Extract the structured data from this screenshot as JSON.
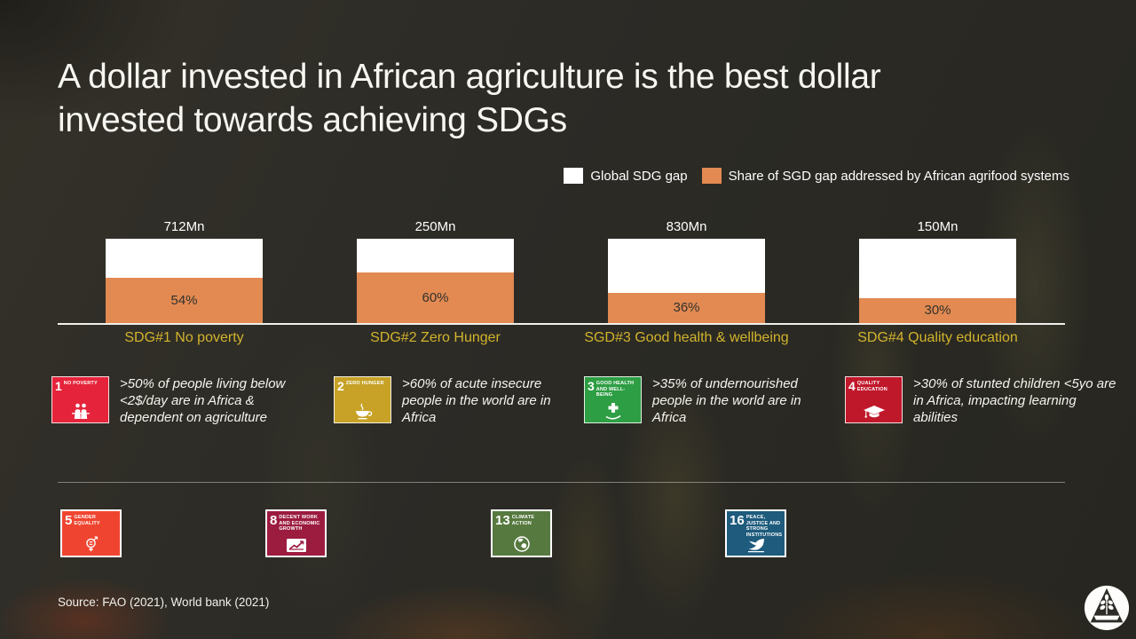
{
  "title_lines": [
    "A dollar invested in African agriculture is the best dollar",
    "invested towards achieving SDGs"
  ],
  "legend": {
    "items": [
      {
        "label": "Global SDG gap",
        "color": "#ffffff"
      },
      {
        "label": "Share of SGD gap addressed by African agrifood systems",
        "color": "#e28a52"
      }
    ]
  },
  "chart_data": {
    "type": "bar",
    "subtype": "stacked-100pct",
    "title": "Global SDG gap vs share of gap addressed by African agrifood systems",
    "categories": [
      "SDG#1 No poverty",
      "SDG#2 Zero Hunger",
      "SGD#3 Good health & wellbeing",
      "SDG#4 Quality education"
    ],
    "totals_label": [
      "712Mn",
      "250Mn",
      "830Mn",
      "150Mn"
    ],
    "totals_mn": [
      712,
      250,
      830,
      150
    ],
    "share_values_pct": [
      54,
      60,
      36,
      30
    ],
    "share_labels": [
      "54%",
      "60%",
      "36%",
      "30%"
    ],
    "series": [
      {
        "name": "Global SDG gap",
        "color": "#ffffff"
      },
      {
        "name": "Share of SGD gap addressed by African agrifood systems",
        "color": "#e28a52"
      }
    ],
    "xlabel": "",
    "ylabel": "",
    "gridlines": false,
    "legend_position": "top-right",
    "category_label_color": "#d2b42c",
    "value_label_color": "#ffffff"
  },
  "sdg_cards": [
    {
      "num": "1",
      "name": "NO POVERTY",
      "color": "#e5243b",
      "text": ">50% of people living below <2$/day are in Africa & dependent on agriculture"
    },
    {
      "num": "2",
      "name": "ZERO HUNGER",
      "color": "#c7a227",
      "text": ">60% of acute insecure people in the world are in Africa"
    },
    {
      "num": "3",
      "name": "GOOD HEALTH AND WELL-BEING",
      "color": "#2e9e44",
      "text": ">35% of undernourished people in the world are in Africa"
    },
    {
      "num": "4",
      "name": "QUALITY EDUCATION",
      "color": "#c0182b",
      "text": ">30% of stunted children <5yo are in Africa, impacting learning abilities"
    }
  ],
  "sdg_footer": [
    {
      "num": "5",
      "name": "GENDER EQUALITY",
      "color": "#ef4530"
    },
    {
      "num": "8",
      "name": "DECENT WORK AND ECONOMIC GROWTH",
      "color": "#9c1c40"
    },
    {
      "num": "13",
      "name": "CLIMATE ACTION",
      "color": "#56793f"
    },
    {
      "num": "16",
      "name": "PEACE, JUSTICE AND STRONG INSTITUTIONS",
      "color": "#1e5b7d"
    }
  ],
  "source": "Source: FAO (2021), World bank (2021)"
}
